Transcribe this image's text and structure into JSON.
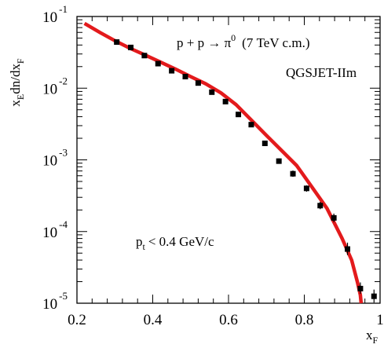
{
  "chart_data": {
    "type": "scatter",
    "title": "",
    "xlabel": "x",
    "xlabel_sub": "F",
    "ylabel": "x",
    "ylabel_sub_E": "E",
    "ylabel_mid": "dn/dx",
    "ylabel_sub_F": "F",
    "xlim": [
      0.2,
      1.0
    ],
    "ylim": [
      1e-05,
      0.1
    ],
    "yscale": "log",
    "grid": false,
    "x_ticks": [
      {
        "value": 0.2,
        "label": "0.2"
      },
      {
        "value": 0.4,
        "label": "0.4"
      },
      {
        "value": 0.6,
        "label": "0.6"
      },
      {
        "value": 0.8,
        "label": "0.8"
      },
      {
        "value": 1.0,
        "label": "1"
      }
    ],
    "y_ticks": [
      {
        "value": 1e-05,
        "base": "10",
        "exp": "-5"
      },
      {
        "value": 0.0001,
        "base": "10",
        "exp": "-4"
      },
      {
        "value": 0.001,
        "base": "10",
        "exp": "-3"
      },
      {
        "value": 0.01,
        "base": "10",
        "exp": "-2"
      },
      {
        "value": 0.1,
        "base": "10",
        "exp": "-1"
      }
    ],
    "annotations": {
      "reaction_prefix": "p + p → π",
      "reaction_sup": "0",
      "reaction_suffix": "(7 TeV c.m.)",
      "model": "QGSJET-IIm",
      "cut_prefix": "p",
      "cut_sub": "t",
      "cut_suffix": "< 0.4 GeV/c"
    },
    "series": [
      {
        "kind": "points",
        "color": "#000000",
        "x": [
          0.305,
          0.342,
          0.378,
          0.414,
          0.45,
          0.486,
          0.52,
          0.556,
          0.592,
          0.626,
          0.66,
          0.696,
          0.733,
          0.77,
          0.806,
          0.842,
          0.878,
          0.914,
          0.948,
          0.984
        ],
        "y": [
          0.044,
          0.037,
          0.0285,
          0.022,
          0.0175,
          0.0145,
          0.0118,
          0.0088,
          0.0065,
          0.0043,
          0.0031,
          0.0017,
          0.00096,
          0.00064,
          0.0004,
          0.00023,
          0.000155,
          5.7e-05,
          1.6e-05,
          1.25e-05
        ],
        "err_low": [
          0.041,
          0.0345,
          0.0265,
          0.0205,
          0.0163,
          0.0135,
          0.011,
          0.0082,
          0.006,
          0.004,
          0.00288,
          0.00157,
          0.00088,
          0.00058,
          0.00036,
          0.000205,
          0.000135,
          4.7e-05,
          1.35e-05,
          1.02e-05
        ],
        "err_high": [
          0.047,
          0.0395,
          0.0305,
          0.0235,
          0.0187,
          0.0155,
          0.0126,
          0.0094,
          0.007,
          0.0046,
          0.00332,
          0.00183,
          0.00105,
          0.00071,
          0.00044,
          0.00026,
          0.000178,
          7e-05,
          1.95e-05,
          1.55e-05
        ]
      },
      {
        "kind": "line",
        "color": "#e31a1c",
        "x": [
          0.22,
          0.26,
          0.3,
          0.34,
          0.38,
          0.42,
          0.46,
          0.5,
          0.54,
          0.58,
          0.62,
          0.66,
          0.7,
          0.74,
          0.78,
          0.82,
          0.86,
          0.9,
          0.925,
          0.94,
          0.948,
          0.95
        ],
        "y": [
          0.08,
          0.06,
          0.046,
          0.036,
          0.029,
          0.0232,
          0.0185,
          0.0145,
          0.0115,
          0.0086,
          0.0059,
          0.0036,
          0.0022,
          0.00135,
          0.00083,
          0.00042,
          0.00021,
          8e-05,
          4e-05,
          2e-05,
          1.3e-05,
          1e-05
        ]
      }
    ]
  }
}
